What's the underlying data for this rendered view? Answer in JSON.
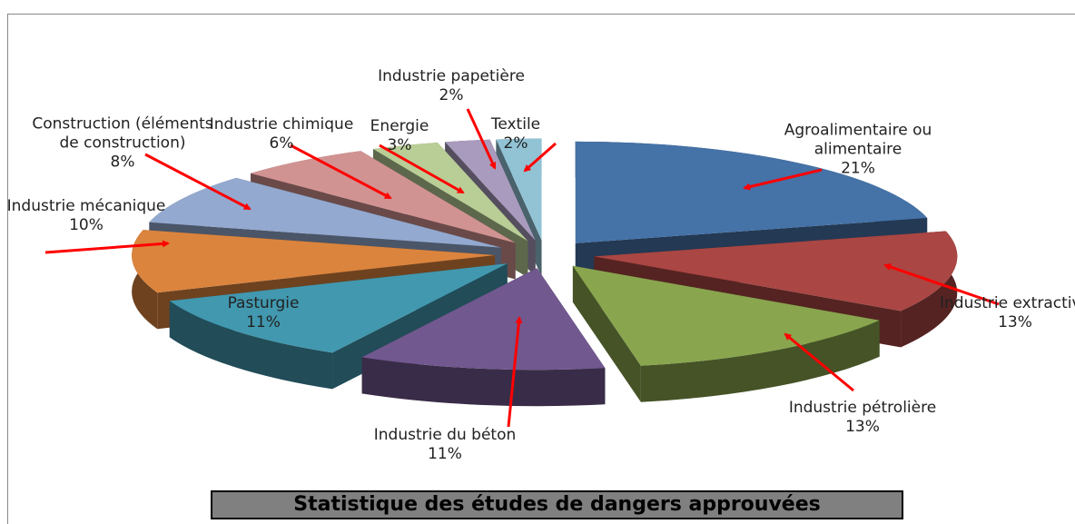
{
  "chart_data": {
    "type": "pie",
    "title": "Statistique des études de dangers approuvées",
    "categories": [
      "Agroalimentaire ou alimentaire",
      "Industrie extractive",
      "Industrie pétrolière",
      "Industrie du béton",
      "Pasturgie",
      "Industrie mécanique",
      "Construction (éléments de construction)",
      "Industrie chimique",
      "Energie",
      "Industrie papetière",
      "Textile"
    ],
    "values": [
      21,
      13,
      13,
      11,
      11,
      10,
      8,
      6,
      3,
      2,
      2
    ],
    "value_labels": [
      "21%",
      "13%",
      "13%",
      "11%",
      "11%",
      "10%",
      "8%",
      "6%",
      "3%",
      "2%",
      "2%"
    ],
    "colors": [
      "#4572a7",
      "#aa4643",
      "#89a54e",
      "#71588f",
      "#4198af",
      "#db843d",
      "#93a9cf",
      "#d19392",
      "#b9cd96",
      "#a99bbd",
      "#91c3d5"
    ]
  }
}
